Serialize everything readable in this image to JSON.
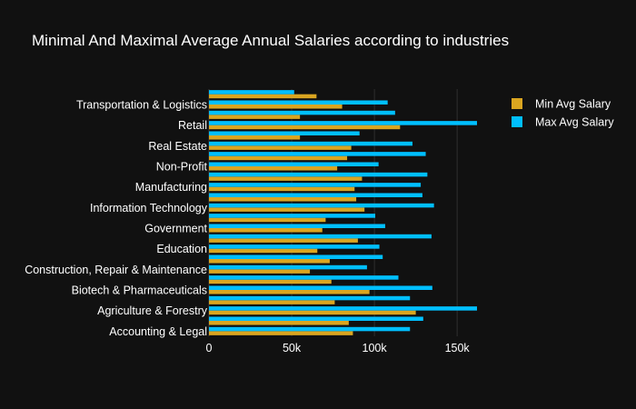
{
  "chart_data": {
    "type": "bar",
    "orientation": "horizontal",
    "barmode": "group",
    "title": "Minimal And Maximal Average Annual Salaries according to industries",
    "xlabel": "",
    "ylabel": "",
    "xlim": [
      0,
      162000
    ],
    "x_ticks": [
      "0",
      "50k",
      "100k",
      "150k"
    ],
    "x_tick_values": [
      0,
      50000,
      100000,
      150000
    ],
    "grid": true,
    "legend_position": "top-right",
    "categories": [
      "Accounting & Legal",
      "",
      "Agriculture & Forestry",
      "",
      "Biotech & Pharmaceuticals",
      "",
      "Construction, Repair & Maintenance",
      "",
      "Education",
      "",
      "Government",
      "",
      "Information Technology",
      "",
      "Manufacturing",
      "",
      "Non-Profit",
      "",
      "Real Estate",
      "",
      "Retail",
      "",
      "Transportation & Logistics",
      ""
    ],
    "series": [
      {
        "name": "Min Avg Salary",
        "color": "#DAA520",
        "values": [
          87000,
          84500,
          125000,
          76000,
          97000,
          74000,
          61000,
          73000,
          65500,
          90000,
          68500,
          70500,
          94000,
          89000,
          88000,
          92500,
          77500,
          83500,
          86000,
          55000,
          115500,
          55000,
          80500,
          65000
        ]
      },
      {
        "name": "Max Avg Salary",
        "color": "#00BFFF",
        "values": [
          121500,
          129500,
          162000,
          121500,
          135000,
          114500,
          95500,
          105000,
          103000,
          134500,
          106500,
          100500,
          136000,
          129000,
          128000,
          132000,
          102500,
          131000,
          123000,
          91000,
          162000,
          112500,
          108000,
          51500
        ]
      }
    ],
    "category_label_color": "#ffffff"
  }
}
